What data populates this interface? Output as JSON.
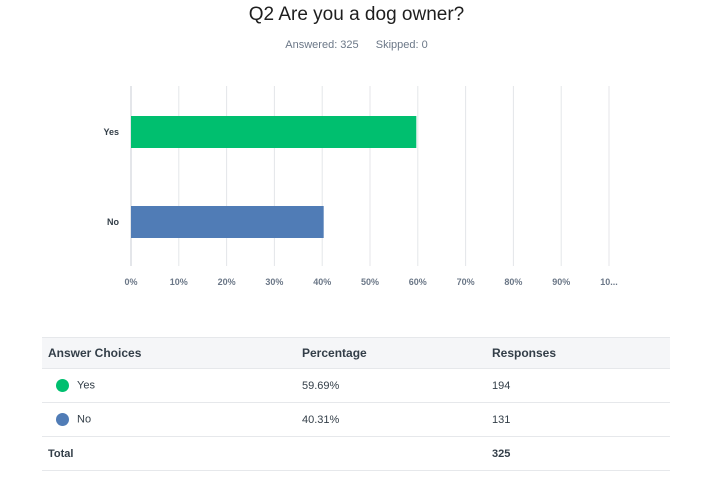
{
  "title": "Q2 Are you a dog owner?",
  "answered": "Answered: 325",
  "skipped": "Skipped: 0",
  "chart_data": {
    "type": "bar",
    "orientation": "horizontal",
    "categories": [
      "Yes",
      "No"
    ],
    "values": [
      59.69,
      40.31
    ],
    "colors": [
      "#00bf6f",
      "#507cb6"
    ],
    "xlim": [
      0,
      100
    ],
    "xticks": [
      "0%",
      "10%",
      "20%",
      "30%",
      "40%",
      "50%",
      "60%",
      "70%",
      "80%",
      "90%",
      "10..."
    ],
    "grid": true
  },
  "table": {
    "headers": [
      "Answer Choices",
      "Percentage",
      "Responses"
    ],
    "rows": [
      {
        "choice": "Yes",
        "percentage": "59.69%",
        "responses": "194",
        "color": "#00bf6f"
      },
      {
        "choice": "No",
        "percentage": "40.31%",
        "responses": "131",
        "color": "#507cb6"
      }
    ],
    "total_label": "Total",
    "total_responses": "325"
  }
}
